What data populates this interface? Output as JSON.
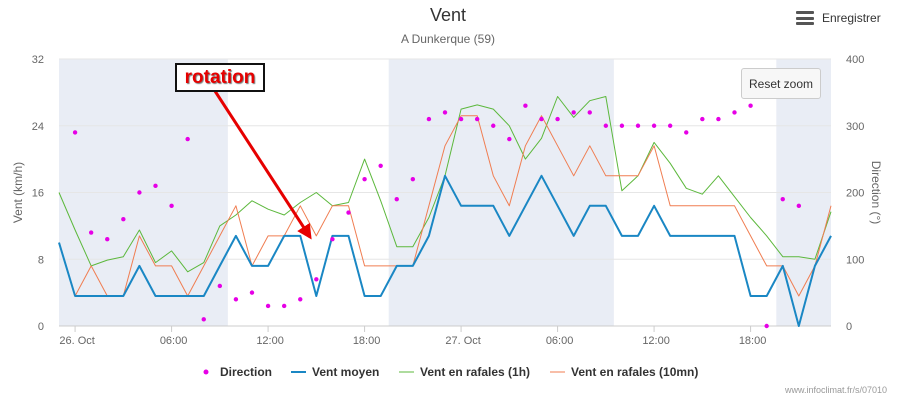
{
  "chart_data": {
    "type": "line",
    "title": "Vent",
    "subtitle": "A Dunkerque (59)",
    "ylabel_left": "Vent (km/h)",
    "ylabel_right": "Direction (°)",
    "ylim_left": [
      0,
      32
    ],
    "ylim_right": [
      0,
      400
    ],
    "y_ticks_left": [
      "0",
      "8",
      "16",
      "24",
      "32"
    ],
    "y_ticks_right": [
      "0",
      "100",
      "200",
      "300",
      "400"
    ],
    "x_ticks": [
      {
        "label": "26. Oct",
        "h": 0
      },
      {
        "label": "06:00",
        "h": 6
      },
      {
        "label": "12:00",
        "h": 12
      },
      {
        "label": "18:00",
        "h": 18
      },
      {
        "label": "27. Oct",
        "h": 24
      },
      {
        "label": "06:00",
        "h": 30
      },
      {
        "label": "12:00",
        "h": 36
      },
      {
        "label": "18:00",
        "h": 42
      }
    ],
    "x_range_hours": [
      -1,
      47
    ],
    "night_bands_hours": [
      [
        -1,
        9.5
      ],
      [
        19.5,
        33.5
      ],
      [
        43.6,
        47
      ]
    ],
    "grid": true,
    "legend_position": "bottom",
    "series": [
      {
        "name": "Direction",
        "axis": "right",
        "kind": "markers",
        "color": "#e600e6",
        "x_hours": [
          0,
          1,
          2,
          3,
          4,
          5,
          6,
          7,
          8,
          9,
          10,
          11,
          12,
          13,
          14,
          15,
          16,
          17,
          18,
          19,
          20,
          21,
          22,
          23,
          24,
          25,
          26,
          27,
          28,
          29,
          30,
          31,
          32,
          33,
          34,
          35,
          36,
          37,
          38,
          39,
          40,
          41,
          42,
          43,
          44,
          45,
          46
        ],
        "values": [
          290,
          140,
          130,
          160,
          200,
          210,
          180,
          280,
          10,
          60,
          40,
          50,
          30,
          30,
          40,
          70,
          130,
          170,
          220,
          240,
          190,
          220,
          310,
          320,
          310,
          310,
          300,
          280,
          330,
          310,
          310,
          320,
          320,
          300,
          300,
          300,
          300,
          300,
          290,
          310,
          310,
          320,
          330,
          0,
          190,
          180,
          null
        ]
      },
      {
        "name": "Vent moyen",
        "axis": "left",
        "color": "#1a87c4",
        "x_hours": [
          -1,
          0,
          1,
          2,
          3,
          4,
          5,
          6,
          7,
          8,
          9,
          10,
          11,
          12,
          13,
          14,
          15,
          16,
          17,
          18,
          19,
          20,
          21,
          22,
          23,
          24,
          25,
          26,
          27,
          28,
          29,
          30,
          31,
          32,
          33,
          34,
          35,
          36,
          37,
          38,
          39,
          40,
          41,
          42,
          43,
          44,
          45,
          46,
          47
        ],
        "values": [
          10,
          3.6,
          3.6,
          3.6,
          3.6,
          7.2,
          3.6,
          3.6,
          3.6,
          3.6,
          7.2,
          10.8,
          7.2,
          7.2,
          10.8,
          10.8,
          3.6,
          10.8,
          10.8,
          3.6,
          3.6,
          7.2,
          7.2,
          10.8,
          18,
          14.4,
          14.4,
          14.4,
          10.8,
          14.4,
          18,
          14.4,
          10.8,
          14.4,
          14.4,
          10.8,
          10.8,
          14.4,
          10.8,
          10.8,
          10.8,
          10.8,
          10.8,
          3.6,
          3.6,
          7.2,
          0,
          7.2,
          10.8
        ]
      },
      {
        "name": "Vent en rafales (1h)",
        "axis": "left",
        "color": "#5cb83c",
        "x_hours": [
          -1,
          0,
          1,
          2,
          3,
          4,
          5,
          6,
          7,
          8,
          9,
          10,
          11,
          12,
          13,
          14,
          15,
          16,
          17,
          18,
          19,
          20,
          21,
          22,
          23,
          24,
          25,
          26,
          27,
          28,
          29,
          30,
          31,
          32,
          33,
          34,
          35,
          36,
          37,
          38,
          39,
          40,
          41,
          42,
          43,
          44,
          45,
          46,
          47
        ],
        "values": [
          16,
          11.5,
          7.2,
          7.9,
          8.3,
          11.5,
          7.6,
          9,
          6.5,
          7.6,
          12,
          13.3,
          15,
          14,
          13.3,
          14.8,
          16,
          14.4,
          14.8,
          20,
          15,
          9.5,
          9.5,
          13,
          18,
          26,
          26.5,
          26,
          24,
          20,
          22.5,
          27.5,
          25,
          27,
          27.5,
          16.2,
          18,
          22,
          19.5,
          16.5,
          15.8,
          18,
          15.5,
          13,
          10.8,
          8.3,
          8.3,
          8,
          13.7
        ]
      },
      {
        "name": "Vent en rafales (10mn)",
        "axis": "left",
        "color": "#f07d51",
        "x_hours": [
          -1,
          0,
          1,
          2,
          3,
          4,
          5,
          6,
          7,
          8,
          9,
          10,
          11,
          12,
          13,
          14,
          15,
          16,
          17,
          18,
          19,
          20,
          21,
          22,
          23,
          24,
          25,
          26,
          27,
          28,
          29,
          30,
          31,
          32,
          33,
          34,
          35,
          36,
          37,
          38,
          39,
          40,
          41,
          42,
          43,
          44,
          45,
          46,
          47
        ],
        "values": [
          10,
          3.6,
          7.2,
          3.6,
          3.6,
          10.8,
          7.2,
          7.2,
          3.6,
          7.2,
          10.8,
          14.4,
          7.2,
          10.8,
          10.8,
          14.4,
          10.8,
          14.4,
          14.4,
          7.2,
          7.2,
          7.2,
          7.2,
          14.4,
          21.6,
          25.2,
          25.2,
          18,
          14.4,
          21.6,
          25.2,
          21.6,
          18,
          21.6,
          18,
          18,
          18,
          21.6,
          14.4,
          14.4,
          14.4,
          14.4,
          14.4,
          10.8,
          7.2,
          7.2,
          3.6,
          7.2,
          14.4
        ]
      }
    ],
    "annotation": {
      "label": "rotation",
      "color": "#e60000"
    }
  },
  "buttons": {
    "export_label": "Enregistrer",
    "reset_zoom_label": "Reset zoom"
  },
  "credits": "www.infoclimat.fr/s/07010",
  "icons": {
    "export_menu": "hamburger-menu-icon"
  },
  "colors": {
    "night_band": "#e9edf5",
    "grid": "#e6e6e6",
    "annotation_arrow": "#e60000"
  }
}
